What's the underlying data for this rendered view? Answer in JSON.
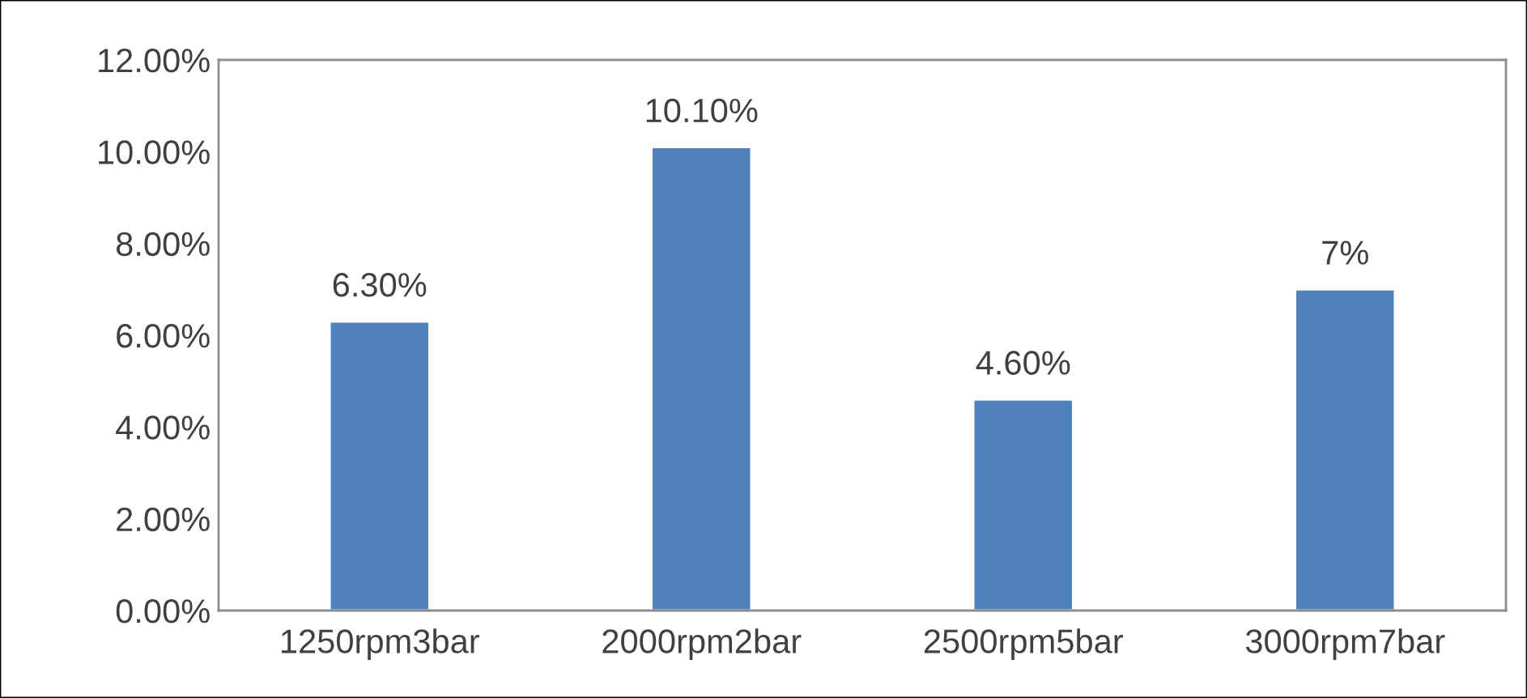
{
  "chart_data": {
    "type": "bar",
    "categories": [
      "1250rpm3bar",
      "2000rpm2bar",
      "2500rpm5bar",
      "3000rpm7bar"
    ],
    "values": [
      6.3,
      10.1,
      4.6,
      7
    ],
    "value_labels": [
      "6.30%",
      "10.10%",
      "4.60%",
      "7%"
    ],
    "color": "#4f81bd",
    "ylim": [
      0,
      12
    ],
    "yticks": [
      {
        "value": 0,
        "label": "0.00%"
      },
      {
        "value": 2,
        "label": "2.00%"
      },
      {
        "value": 4,
        "label": "4.00%"
      },
      {
        "value": 6,
        "label": "6.00%"
      },
      {
        "value": 8,
        "label": "8.00%"
      },
      {
        "value": 10,
        "label": "10.00%"
      },
      {
        "value": 12,
        "label": "12.00%"
      }
    ],
    "grid": false,
    "legend": false
  }
}
